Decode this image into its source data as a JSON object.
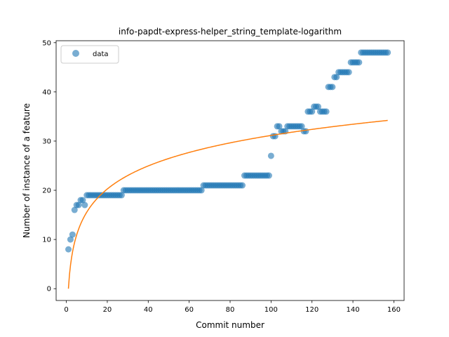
{
  "chart_data": {
    "type": "scatter",
    "title": "info-papdt-express-helper_string_template-logarithm",
    "xlabel": "Commit number",
    "ylabel": "Number of instance of a feature",
    "xlim": [
      -5,
      165
    ],
    "ylim": [
      -2.4,
      50.4
    ],
    "xticks": [
      0,
      20,
      40,
      60,
      80,
      100,
      120,
      140,
      160
    ],
    "yticks": [
      0,
      10,
      20,
      30,
      40,
      50
    ],
    "grid": false,
    "legend_position": "top-left",
    "series": [
      {
        "name": "data",
        "kind": "scatter",
        "color": "#1f77b4",
        "points": [
          [
            1,
            8
          ],
          [
            2,
            10
          ],
          [
            3,
            11
          ],
          [
            4,
            16
          ],
          [
            5,
            17
          ],
          [
            6,
            17
          ],
          [
            7,
            18
          ],
          [
            8,
            18
          ],
          [
            9,
            17
          ],
          [
            10,
            19
          ],
          [
            11,
            19
          ],
          [
            12,
            19
          ],
          [
            13,
            19
          ],
          [
            14,
            19
          ],
          [
            15,
            19
          ],
          [
            16,
            19
          ],
          [
            17,
            19
          ],
          [
            18,
            19
          ],
          [
            19,
            19
          ],
          [
            20,
            19
          ],
          [
            21,
            19
          ],
          [
            22,
            19
          ],
          [
            23,
            19
          ],
          [
            24,
            19
          ],
          [
            25,
            19
          ],
          [
            26,
            19
          ],
          [
            27,
            19
          ],
          [
            28,
            20
          ],
          [
            29,
            20
          ],
          [
            30,
            20
          ],
          [
            31,
            20
          ],
          [
            32,
            20
          ],
          [
            33,
            20
          ],
          [
            34,
            20
          ],
          [
            35,
            20
          ],
          [
            36,
            20
          ],
          [
            37,
            20
          ],
          [
            38,
            20
          ],
          [
            39,
            20
          ],
          [
            40,
            20
          ],
          [
            41,
            20
          ],
          [
            42,
            20
          ],
          [
            43,
            20
          ],
          [
            44,
            20
          ],
          [
            45,
            20
          ],
          [
            46,
            20
          ],
          [
            47,
            20
          ],
          [
            48,
            20
          ],
          [
            49,
            20
          ],
          [
            50,
            20
          ],
          [
            51,
            20
          ],
          [
            52,
            20
          ],
          [
            53,
            20
          ],
          [
            54,
            20
          ],
          [
            55,
            20
          ],
          [
            56,
            20
          ],
          [
            57,
            20
          ],
          [
            58,
            20
          ],
          [
            59,
            20
          ],
          [
            60,
            20
          ],
          [
            61,
            20
          ],
          [
            62,
            20
          ],
          [
            63,
            20
          ],
          [
            64,
            20
          ],
          [
            65,
            20
          ],
          [
            66,
            20
          ],
          [
            67,
            21
          ],
          [
            68,
            21
          ],
          [
            69,
            21
          ],
          [
            70,
            21
          ],
          [
            71,
            21
          ],
          [
            72,
            21
          ],
          [
            73,
            21
          ],
          [
            74,
            21
          ],
          [
            75,
            21
          ],
          [
            76,
            21
          ],
          [
            77,
            21
          ],
          [
            78,
            21
          ],
          [
            79,
            21
          ],
          [
            80,
            21
          ],
          [
            81,
            21
          ],
          [
            82,
            21
          ],
          [
            83,
            21
          ],
          [
            84,
            21
          ],
          [
            85,
            21
          ],
          [
            86,
            21
          ],
          [
            87,
            23
          ],
          [
            88,
            23
          ],
          [
            89,
            23
          ],
          [
            90,
            23
          ],
          [
            91,
            23
          ],
          [
            92,
            23
          ],
          [
            93,
            23
          ],
          [
            94,
            23
          ],
          [
            95,
            23
          ],
          [
            96,
            23
          ],
          [
            97,
            23
          ],
          [
            98,
            23
          ],
          [
            99,
            23
          ],
          [
            100,
            27
          ],
          [
            101,
            31
          ],
          [
            102,
            31
          ],
          [
            103,
            33
          ],
          [
            104,
            33
          ],
          [
            105,
            32
          ],
          [
            106,
            32
          ],
          [
            107,
            32
          ],
          [
            108,
            33
          ],
          [
            109,
            33
          ],
          [
            110,
            33
          ],
          [
            111,
            33
          ],
          [
            112,
            33
          ],
          [
            113,
            33
          ],
          [
            114,
            33
          ],
          [
            115,
            33
          ],
          [
            116,
            32
          ],
          [
            117,
            32
          ],
          [
            118,
            36
          ],
          [
            119,
            36
          ],
          [
            120,
            36
          ],
          [
            121,
            37
          ],
          [
            122,
            37
          ],
          [
            123,
            37
          ],
          [
            124,
            36
          ],
          [
            125,
            36
          ],
          [
            126,
            36
          ],
          [
            127,
            36
          ],
          [
            128,
            41
          ],
          [
            129,
            41
          ],
          [
            130,
            41
          ],
          [
            131,
            43
          ],
          [
            132,
            43
          ],
          [
            133,
            44
          ],
          [
            134,
            44
          ],
          [
            135,
            44
          ],
          [
            136,
            44
          ],
          [
            137,
            44
          ],
          [
            138,
            44
          ],
          [
            139,
            46
          ],
          [
            140,
            46
          ],
          [
            141,
            46
          ],
          [
            142,
            46
          ],
          [
            143,
            46
          ],
          [
            144,
            48
          ],
          [
            145,
            48
          ],
          [
            146,
            48
          ],
          [
            147,
            48
          ],
          [
            148,
            48
          ],
          [
            149,
            48
          ],
          [
            150,
            48
          ],
          [
            151,
            48
          ],
          [
            152,
            48
          ],
          [
            153,
            48
          ],
          [
            154,
            48
          ],
          [
            155,
            48
          ],
          [
            156,
            48
          ],
          [
            157,
            48
          ]
        ]
      },
      {
        "kind": "line",
        "color": "#ff7f0e",
        "fit": "logarithmic",
        "x_range": [
          1,
          157
        ],
        "points": [
          [
            1,
            0
          ],
          [
            2,
            4.7
          ],
          [
            3,
            7.4
          ],
          [
            5,
            10.9
          ],
          [
            10,
            15.6
          ],
          [
            20,
            20.3
          ],
          [
            40,
            25.0
          ],
          [
            60,
            27.7
          ],
          [
            80,
            29.6
          ],
          [
            100,
            31.2
          ],
          [
            120,
            32.4
          ],
          [
            140,
            33.4
          ],
          [
            157,
            34.2
          ]
        ]
      }
    ]
  }
}
